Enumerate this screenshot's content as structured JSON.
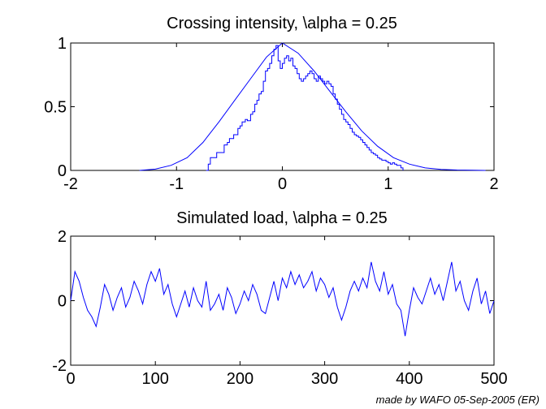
{
  "chart_data": [
    {
      "type": "line",
      "title": "Crossing intensity, \\alpha = 0.25",
      "xlabel": "",
      "ylabel": "",
      "xlim": [
        -2,
        2
      ],
      "ylim": [
        0,
        1
      ],
      "xticks": [
        "-2",
        "-1",
        "0",
        "1",
        "2"
      ],
      "yticks": [
        "0",
        "0.5",
        "1"
      ],
      "grid": false,
      "series": [
        {
          "kind": "smooth",
          "color": "#0000ff",
          "x": [
            -1.35,
            -1.2,
            -1.05,
            -0.9,
            -0.75,
            -0.6,
            -0.45,
            -0.3,
            -0.15,
            0,
            0.15,
            0.3,
            0.45,
            0.6,
            0.75,
            0.9,
            1.05,
            1.2,
            1.35,
            1.5,
            1.65,
            1.8,
            1.92
          ],
          "y": [
            0.0,
            0.01,
            0.04,
            0.1,
            0.22,
            0.38,
            0.55,
            0.72,
            0.89,
            1.0,
            0.92,
            0.78,
            0.62,
            0.46,
            0.31,
            0.19,
            0.1,
            0.05,
            0.02,
            0.008,
            0.003,
            0.001,
            0.0
          ]
        },
        {
          "kind": "empirical-step",
          "color": "#0000ff",
          "x": [
            -0.72,
            -0.7,
            -0.68,
            -0.62,
            -0.58,
            -0.55,
            -0.52,
            -0.5,
            -0.46,
            -0.42,
            -0.4,
            -0.38,
            -0.35,
            -0.33,
            -0.3,
            -0.28,
            -0.26,
            -0.24,
            -0.22,
            -0.2,
            -0.18,
            -0.16,
            -0.14,
            -0.12,
            -0.1,
            -0.08,
            -0.06,
            -0.04,
            -0.02,
            0.0,
            0.02,
            0.04,
            0.06,
            0.08,
            0.1,
            0.12,
            0.14,
            0.16,
            0.18,
            0.2,
            0.22,
            0.24,
            0.26,
            0.28,
            0.3,
            0.32,
            0.34,
            0.36,
            0.38,
            0.4,
            0.42,
            0.44,
            0.46,
            0.48,
            0.5,
            0.52,
            0.54,
            0.56,
            0.58,
            0.6,
            0.62,
            0.64,
            0.66,
            0.68,
            0.7,
            0.72,
            0.74,
            0.76,
            0.78,
            0.8,
            0.82,
            0.84,
            0.86,
            0.88,
            0.9,
            0.92,
            0.94,
            0.96,
            0.98,
            1.0,
            1.02,
            1.04,
            1.06,
            1.08,
            1.1,
            1.12,
            1.14
          ],
          "y": [
            0.0,
            0.05,
            0.1,
            0.14,
            0.14,
            0.2,
            0.22,
            0.25,
            0.28,
            0.33,
            0.35,
            0.38,
            0.4,
            0.39,
            0.44,
            0.46,
            0.52,
            0.55,
            0.6,
            0.62,
            0.7,
            0.78,
            0.8,
            0.84,
            0.9,
            0.95,
            0.98,
            0.86,
            0.8,
            0.84,
            0.88,
            0.9,
            0.86,
            0.88,
            0.82,
            0.8,
            0.76,
            0.72,
            0.7,
            0.72,
            0.74,
            0.76,
            0.78,
            0.76,
            0.72,
            0.7,
            0.74,
            0.72,
            0.7,
            0.68,
            0.7,
            0.68,
            0.66,
            0.6,
            0.56,
            0.52,
            0.48,
            0.44,
            0.4,
            0.38,
            0.36,
            0.33,
            0.3,
            0.28,
            0.27,
            0.26,
            0.24,
            0.22,
            0.2,
            0.18,
            0.16,
            0.14,
            0.13,
            0.12,
            0.1,
            0.09,
            0.08,
            0.08,
            0.07,
            0.06,
            0.05,
            0.06,
            0.05,
            0.04,
            0.04,
            0.02,
            0.0
          ]
        }
      ]
    },
    {
      "type": "line",
      "title": "Simulated load, \\alpha = 0.25",
      "xlabel": "",
      "ylabel": "",
      "xlim": [
        0,
        500
      ],
      "ylim": [
        -2,
        2
      ],
      "xticks": [
        "0",
        "100",
        "200",
        "300",
        "400",
        "500"
      ],
      "yticks": [
        "-2",
        "0",
        "2"
      ],
      "grid": false,
      "series": [
        {
          "color": "#0000ff",
          "x": [
            0,
            5,
            10,
            15,
            20,
            25,
            30,
            35,
            40,
            45,
            50,
            55,
            60,
            65,
            70,
            75,
            80,
            85,
            90,
            95,
            100,
            105,
            110,
            115,
            120,
            125,
            130,
            135,
            140,
            145,
            150,
            155,
            160,
            165,
            170,
            175,
            180,
            185,
            190,
            195,
            200,
            205,
            210,
            215,
            220,
            225,
            230,
            235,
            240,
            245,
            250,
            255,
            260,
            265,
            270,
            275,
            280,
            285,
            290,
            295,
            300,
            305,
            310,
            315,
            320,
            325,
            330,
            335,
            340,
            345,
            350,
            355,
            360,
            365,
            370,
            375,
            380,
            385,
            390,
            395,
            400,
            405,
            410,
            415,
            420,
            425,
            430,
            435,
            440,
            445,
            450,
            455,
            460,
            465,
            470,
            475,
            480,
            485,
            490,
            495,
            500
          ],
          "y": [
            0.0,
            0.9,
            0.6,
            0.1,
            -0.3,
            -0.5,
            -0.8,
            -0.2,
            0.5,
            0.2,
            -0.3,
            0.1,
            0.4,
            -0.2,
            0.1,
            0.6,
            0.3,
            -0.1,
            0.5,
            0.9,
            0.6,
            1.0,
            0.2,
            0.5,
            -0.1,
            -0.5,
            -0.1,
            0.3,
            -0.2,
            0.4,
            0.0,
            -0.2,
            0.6,
            -0.3,
            -0.1,
            0.2,
            -0.3,
            0.4,
            0.1,
            -0.4,
            -0.1,
            0.3,
            0.0,
            0.5,
            0.2,
            -0.3,
            -0.4,
            0.1,
            0.6,
            0.0,
            0.7,
            0.4,
            0.9,
            0.5,
            0.8,
            0.4,
            0.6,
            0.9,
            0.3,
            0.7,
            0.5,
            0.1,
            0.4,
            -0.2,
            -0.6,
            -0.2,
            0.3,
            0.6,
            0.3,
            0.7,
            0.4,
            1.2,
            0.6,
            0.3,
            0.9,
            0.2,
            0.5,
            -0.1,
            -0.3,
            -1.1,
            -0.3,
            0.4,
            0.1,
            -0.1,
            0.3,
            0.7,
            0.2,
            0.5,
            0.0,
            0.6,
            1.2,
            0.3,
            0.6,
            0.0,
            -0.3,
            0.3,
            0.7,
            -0.1,
            0.3,
            -0.4,
            0.0
          ]
        }
      ]
    }
  ],
  "footer": "made by WAFO 05-Sep-2005 (ER)",
  "colors": {
    "line": "#0000ff",
    "axes": "#000000",
    "background": "#ffffff"
  }
}
